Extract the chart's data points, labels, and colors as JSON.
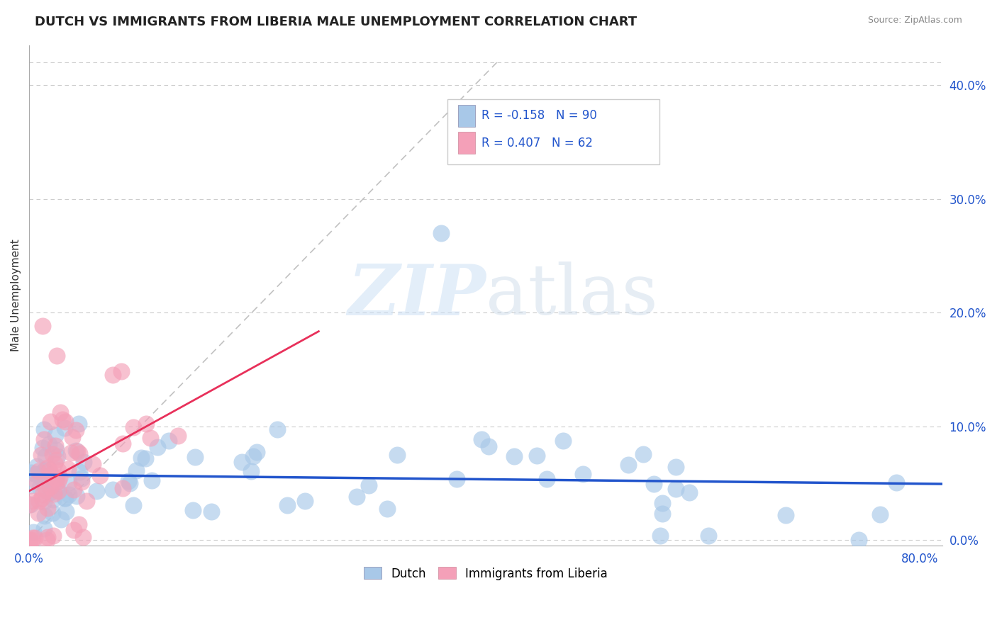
{
  "title": "DUTCH VS IMMIGRANTS FROM LIBERIA MALE UNEMPLOYMENT CORRELATION CHART",
  "source": "Source: ZipAtlas.com",
  "ylabel": "Male Unemployment",
  "yticks_labels": [
    "0.0%",
    "10.0%",
    "20.0%",
    "30.0%",
    "40.0%"
  ],
  "ytick_vals": [
    0.0,
    0.1,
    0.2,
    0.3,
    0.4
  ],
  "xlim": [
    0.0,
    0.82
  ],
  "ylim": [
    -0.005,
    0.435
  ],
  "dutch_color": "#a8c8e8",
  "liberia_color": "#f4a0b8",
  "dutch_line_color": "#2255cc",
  "liberia_line_color": "#e8305a",
  "diagonal_color": "#bbbbbb",
  "background_color": "#ffffff",
  "watermark_zip": "ZIP",
  "watermark_atlas": "atlas",
  "legend_r1": "R = -0.158",
  "legend_n1": "N = 90",
  "legend_r2": "R = 0.407",
  "legend_n2": "N = 62",
  "legend_r_color": "#333333",
  "legend_n_color": "#2255cc",
  "title_color": "#222222",
  "source_color": "#888888",
  "ylabel_color": "#333333",
  "tick_color": "#2255cc",
  "grid_color": "#cccccc"
}
